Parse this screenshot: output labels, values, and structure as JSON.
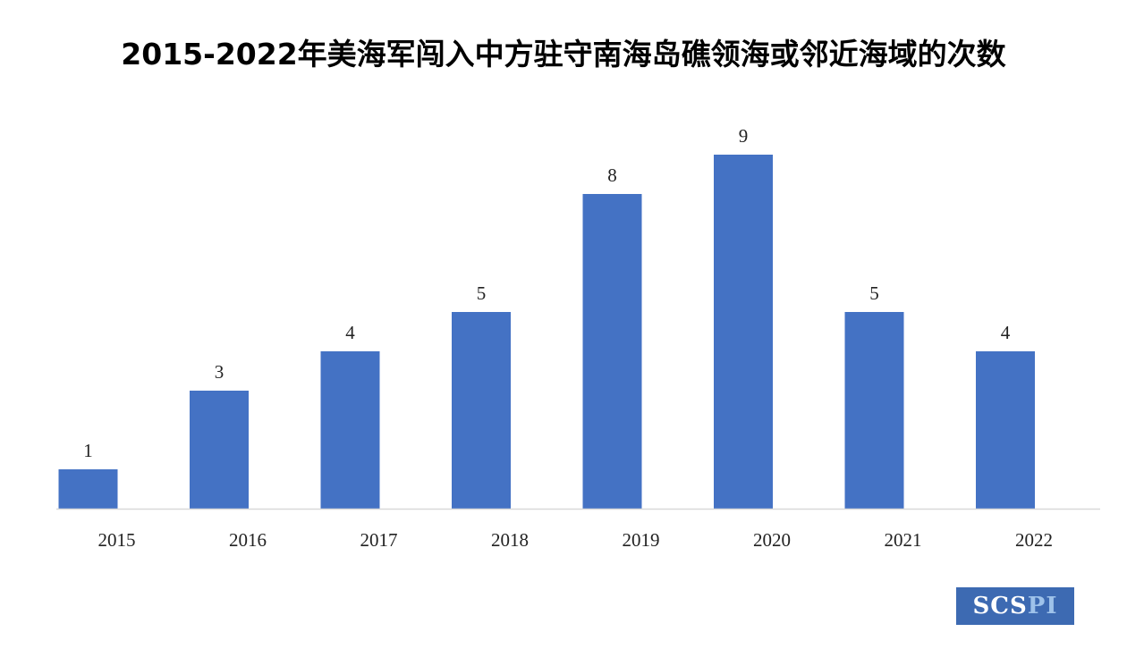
{
  "title": "2015-2022年美海军闯入中方驻守南海岛礁领海或邻近海域的次数",
  "logo": {
    "text_main": "SCS",
    "text_accent": "PI"
  },
  "colors": {
    "bar": "#4472c4",
    "axis": "#d9d9d9",
    "text": "#222222"
  },
  "chart_data": {
    "type": "bar",
    "title": "2015-2022年美海军闯入中方驻守南海岛礁领海或邻近海域的次数",
    "categories": [
      "2015",
      "2016",
      "2017",
      "2018",
      "2019",
      "2020",
      "2021",
      "2022"
    ],
    "values": [
      1,
      3,
      4,
      5,
      8,
      9,
      5,
      4
    ],
    "data_labels": [
      "1",
      "3",
      "4",
      "5",
      "8",
      "9",
      "5",
      "4"
    ],
    "xlabel": "",
    "ylabel": "",
    "ylim": [
      0,
      9
    ],
    "grid": false,
    "legend": "none"
  }
}
